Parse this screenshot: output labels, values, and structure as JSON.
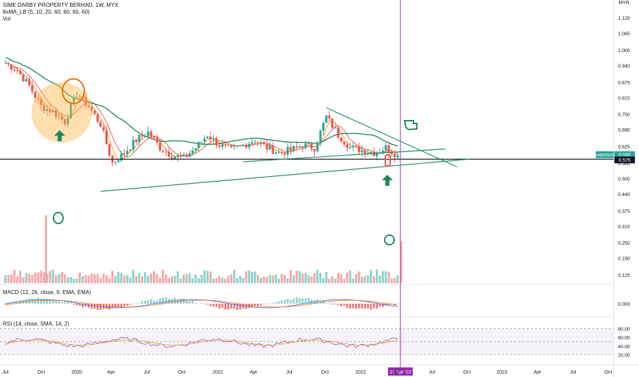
{
  "header": {
    "title": "SIME DARBY PROPERTY BERHAD, 1W, MYX",
    "ma_label": "8xMA_LB (5, 10, 20, 60, 60, 60, 60)",
    "vol_label": "Vol"
  },
  "currency": "MYR",
  "price_axis_ticks": [
    "1.125",
    "1.065",
    "1.000",
    "0.940",
    "0.875",
    "0.815",
    "0.750",
    "0.690",
    "0.625",
    "0.560",
    "0.500",
    "0.440",
    "0.375",
    "0.315",
    "0.250",
    "0.190",
    "0.125"
  ],
  "price_tick_values": [
    1.125,
    1.065,
    1.0,
    0.94,
    0.875,
    0.815,
    0.75,
    0.69,
    0.625,
    0.56,
    0.5,
    0.44,
    0.375,
    0.315,
    0.25,
    0.19,
    0.125
  ],
  "symbol_tag": {
    "label": "SIMEPROP",
    "value": "0.590"
  },
  "horizontal_line_tag": "0.575",
  "macd": {
    "label": "MACD (12, 26, close, 9, EMA, EMA)",
    "tick": "0.000"
  },
  "rsi": {
    "label": "RSI (14, close, SMA, 14, 2)",
    "ticks": [
      "80.00",
      "60.00",
      "40.00",
      "20.00"
    ],
    "tick_values": [
      80,
      60,
      40,
      20
    ],
    "band_upper": 80,
    "band_lower": 20,
    "middle": 50
  },
  "time_axis": [
    "Jul",
    "Oct",
    "2020",
    "Apr",
    "Jul",
    "Oct",
    "2021",
    "Apr",
    "Jul",
    "Oct",
    "2022",
    "Apr",
    "Jul",
    "Oct",
    "2023",
    "Apr",
    "Jul",
    "Oct"
  ],
  "cursor_label": "18 Apr '22",
  "colors": {
    "up": "#26a69a",
    "down": "#ef5350",
    "ma_orange": "#ff9800",
    "ma_red": "#f05a5a",
    "ma_green": "#1b8a5a",
    "trendline": "#1b8a5a",
    "cursor": "#9c27b0",
    "rsi_band": "#7e57c2",
    "macd_line": "#2962ff",
    "signal_line": "#ff6d00",
    "vol_up": "#8fd3cb",
    "vol_down": "#f7a9a8"
  },
  "chart_data": {
    "type": "candlestick",
    "timeframe": "1W",
    "series": [
      {
        "name": "price_close_approx",
        "x": [
          "2019-07",
          "2019-08",
          "2019-09",
          "2019-10",
          "2019-11",
          "2019-12",
          "2020-01",
          "2020-02",
          "2020-03",
          "2020-04",
          "2020-05",
          "2020-06",
          "2020-07",
          "2020-08",
          "2020-09",
          "2020-10",
          "2020-11",
          "2020-12",
          "2021-01",
          "2021-02",
          "2021-03",
          "2021-04",
          "2021-05",
          "2021-06",
          "2021-07",
          "2021-08",
          "2021-09",
          "2021-10",
          "2021-11",
          "2021-12",
          "2022-01",
          "2022-02",
          "2022-03",
          "2022-04"
        ],
        "values": [
          0.95,
          0.92,
          0.86,
          0.78,
          0.76,
          0.72,
          0.83,
          0.78,
          0.71,
          0.56,
          0.6,
          0.65,
          0.68,
          0.62,
          0.59,
          0.58,
          0.62,
          0.67,
          0.63,
          0.61,
          0.63,
          0.65,
          0.62,
          0.6,
          0.61,
          0.63,
          0.62,
          0.74,
          0.67,
          0.62,
          0.61,
          0.6,
          0.62,
          0.59
        ]
      }
    ],
    "volume_spikes": [
      "2019-10",
      "2022-04"
    ],
    "trendlines": [
      {
        "from": [
          "2021-10",
          0.775
        ],
        "to": [
          "2022-09",
          0.545
        ]
      },
      {
        "from": [
          "2020-03",
          0.45
        ],
        "to": [
          "2022-10",
          0.575
        ]
      },
      {
        "from": [
          "2021-03",
          0.565
        ],
        "to": [
          "2022-08",
          0.615
        ]
      }
    ],
    "horizontal_level": 0.575,
    "ylim": [
      0.09,
      1.16
    ]
  }
}
